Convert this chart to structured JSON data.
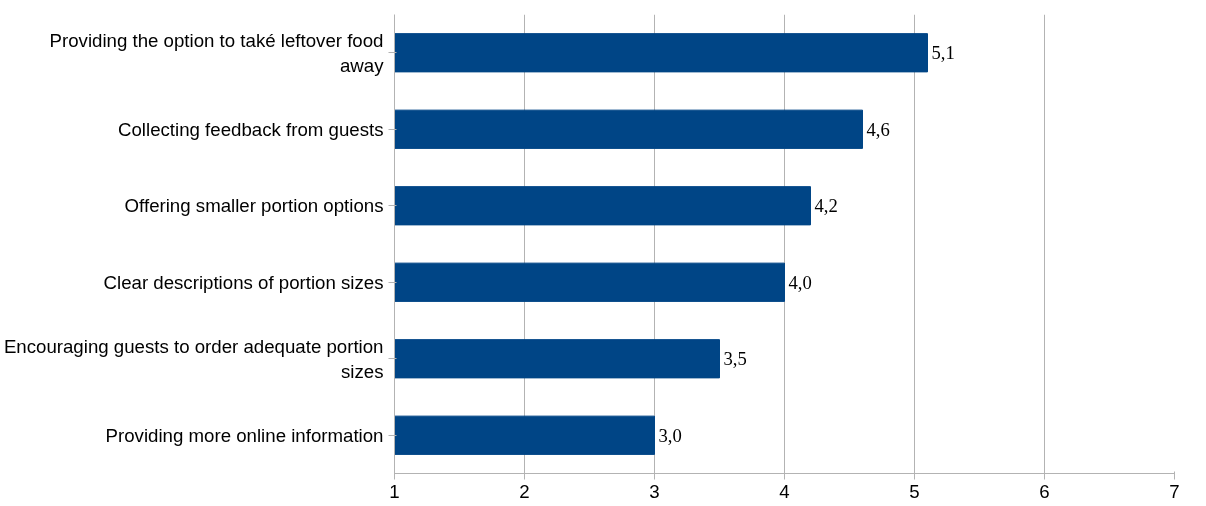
{
  "chart_data": {
    "type": "bar",
    "orientation": "horizontal",
    "categories": [
      "Providing the option to také leftover food away",
      "Collecting feedback from guests",
      "Offering smaller portion options",
      "Clear descriptions of portion sizes",
      "Encouraging guests to order adequate portion sizes",
      "Providing more online information"
    ],
    "values": [
      5.1,
      4.6,
      4.2,
      4.0,
      3.5,
      3.0
    ],
    "value_labels": [
      "5,1",
      "4,6",
      "4,2",
      "4,0",
      "3,5",
      "3,0"
    ],
    "color": "#004586",
    "xlim": [
      1,
      7
    ],
    "xticks": [
      1,
      2,
      3,
      4,
      5,
      6,
      7
    ],
    "grid": "x"
  }
}
